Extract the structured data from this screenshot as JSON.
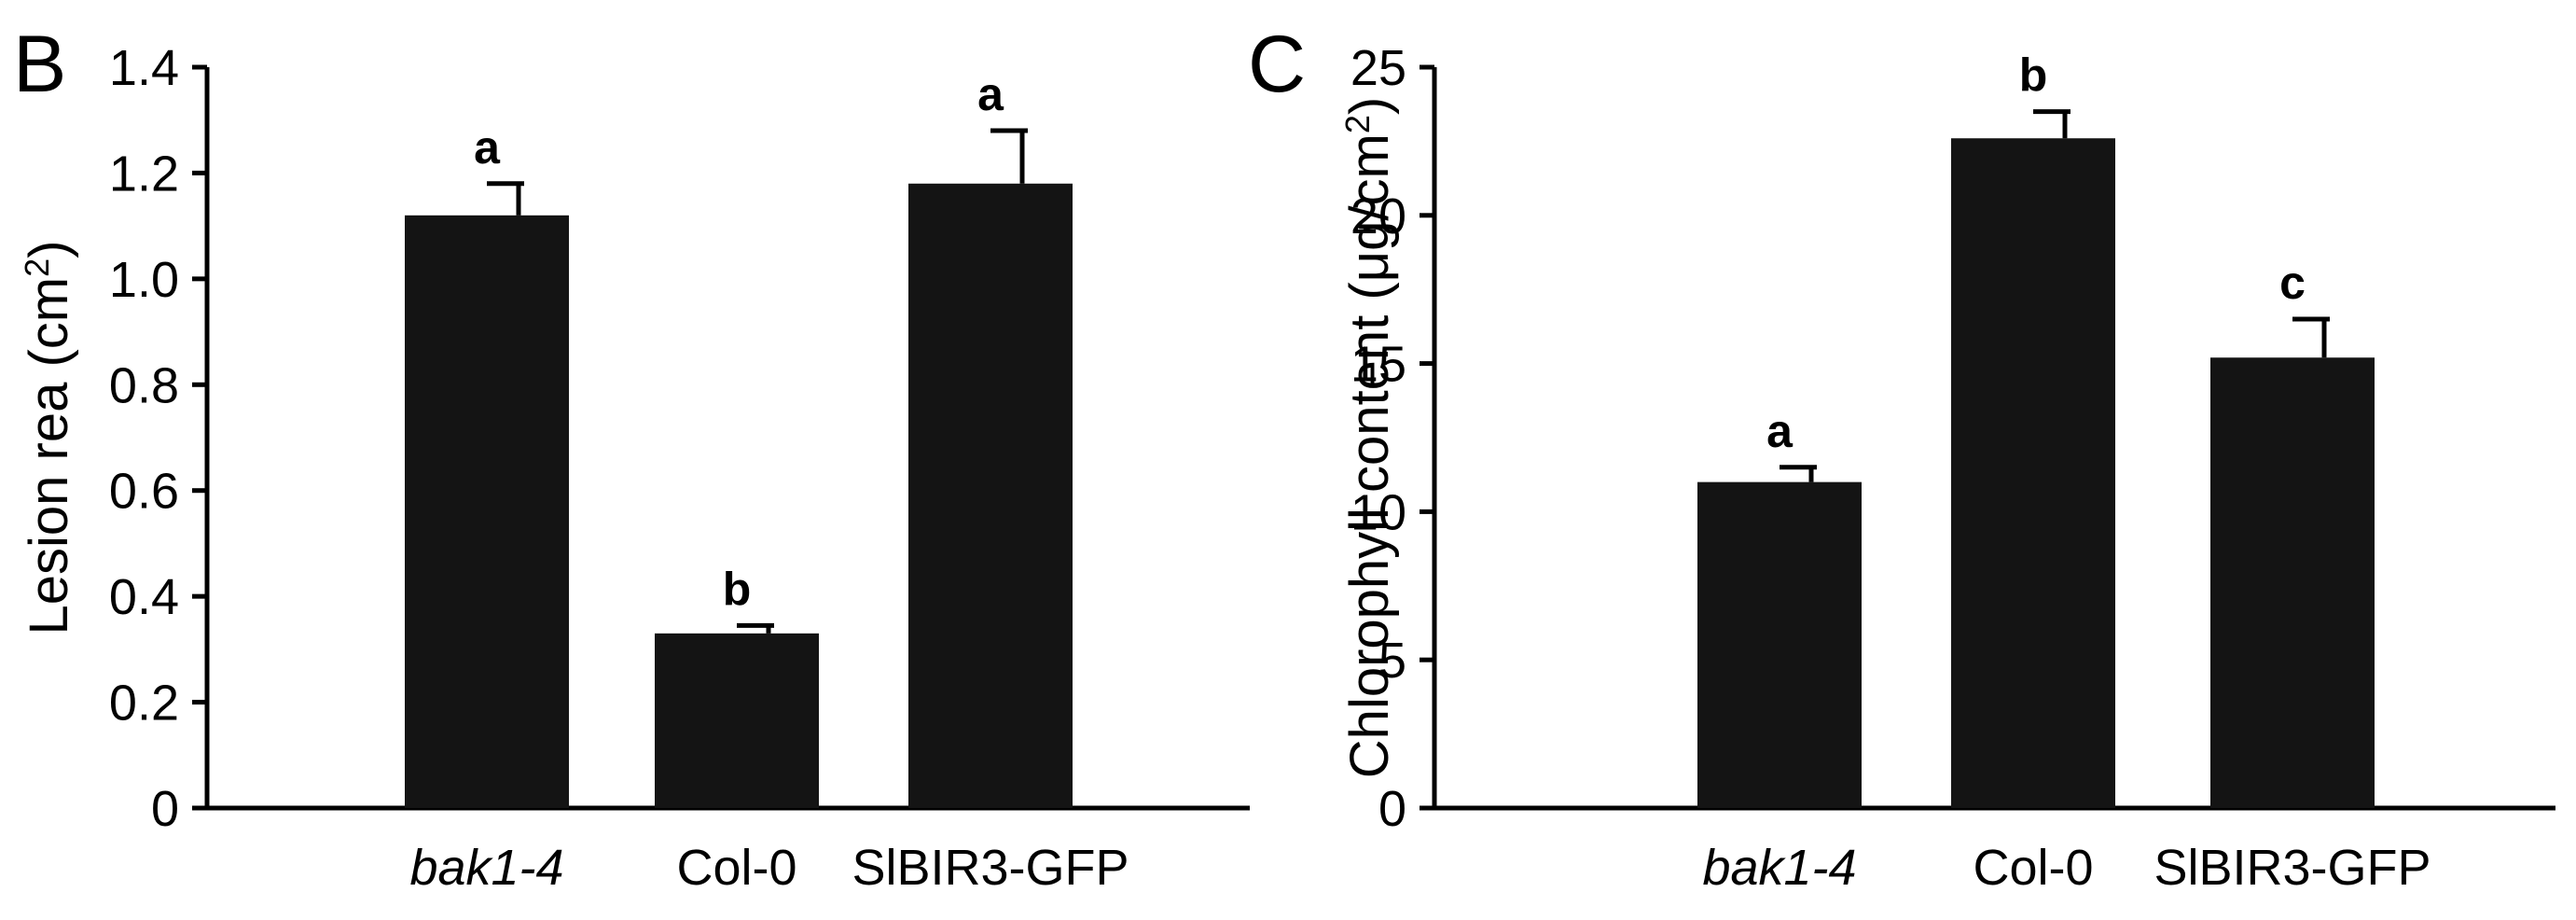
{
  "chart_data": [
    {
      "panel": "B",
      "type": "bar",
      "ylabel": "Lesion rea (cm",
      "ylabel_sup": "2",
      "ylabel_end": ")",
      "ylim": [
        0,
        1.4
      ],
      "yticks": [
        "0",
        "0.2",
        "0.4",
        "0.6",
        "0.8",
        "1.0",
        "1.2",
        "1.4"
      ],
      "categories": [
        "bak1-4",
        "Col-0",
        "SlBIR3-GFP"
      ],
      "italic_categories": [
        true,
        false,
        false
      ],
      "values": [
        1.12,
        0.33,
        1.18
      ],
      "errors": [
        0.06,
        0.015,
        0.1
      ],
      "significance": [
        "a",
        "b",
        "a"
      ],
      "grid": false
    },
    {
      "panel": "C",
      "type": "bar",
      "ylabel": "Chlorophyll content (μg/cm",
      "ylabel_sup": "2",
      "ylabel_end": ")",
      "ylim": [
        0,
        25
      ],
      "yticks": [
        "0",
        "5",
        "10",
        "15",
        "20",
        "25"
      ],
      "categories": [
        "bak1-4",
        "Col-0",
        "SlBIR3-GFP"
      ],
      "italic_categories": [
        true,
        false,
        false
      ],
      "values": [
        11.0,
        22.6,
        15.2
      ],
      "errors": [
        0.5,
        0.9,
        1.3
      ],
      "significance": [
        "a",
        "b",
        "c"
      ],
      "grid": false
    }
  ]
}
